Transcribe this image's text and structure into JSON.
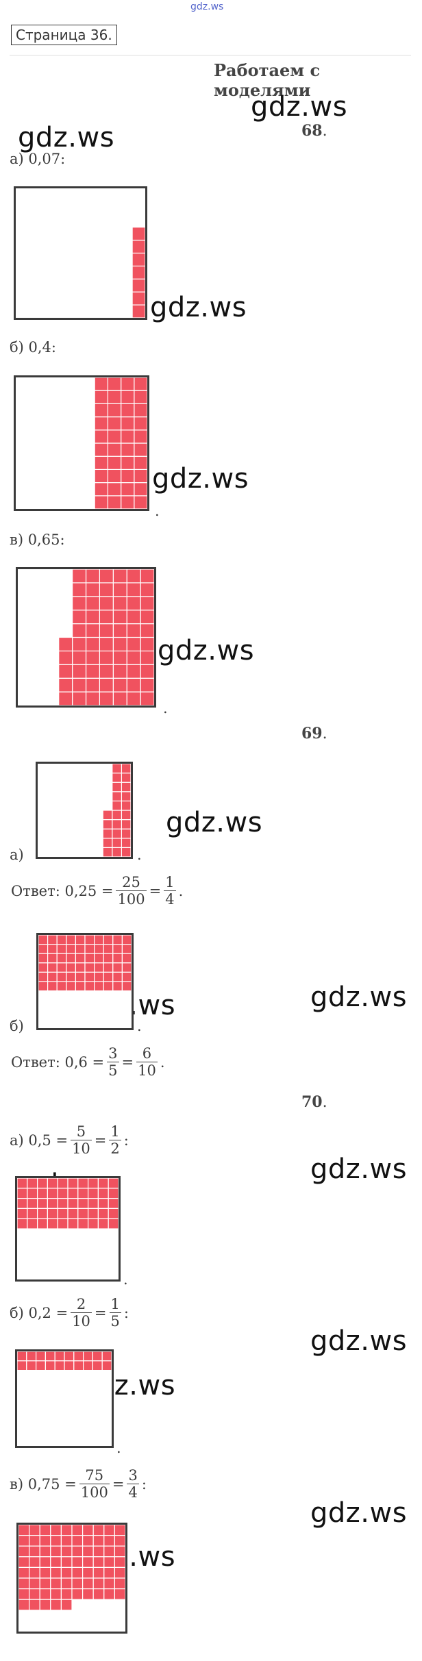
{
  "site_top": "gdz.ws",
  "page_label": "Страница 36.",
  "section_title": "Работаем с моделями",
  "watermark": "gdz.ws",
  "ex68": {
    "number": "68",
    "a_label": "а) 0,07:",
    "b_label": "б) 0,4:",
    "c_label": "в) 0,65:",
    "a_fraction": 0.07,
    "b_fraction": 0.4,
    "c_fraction": 0.65
  },
  "ex69": {
    "number": "69",
    "a_label": "а)",
    "a_answer_prefix": "Ответ: 0,25 =",
    "a_frac1_num": "25",
    "a_frac1_den": "100",
    "a_frac2_num": "1",
    "a_frac2_den": "4",
    "b_label": "б)",
    "b_answer_prefix": "Ответ: 0,6 =",
    "b_frac1_num": "3",
    "b_frac1_den": "5",
    "b_frac2_num": "6",
    "b_frac2_den": "10",
    "a_fraction": 0.25,
    "b_fraction": 0.6
  },
  "ex70": {
    "number": "70",
    "a_prefix": "а) 0,5 =",
    "a_frac1_num": "5",
    "a_frac1_den": "10",
    "a_frac2_num": "1",
    "a_frac2_den": "2",
    "b_prefix": "б) 0,2 =",
    "b_frac1_num": "2",
    "b_frac1_den": "10",
    "b_frac2_num": "1",
    "b_frac2_den": "5",
    "c_prefix": "в) 0,75 =",
    "c_frac1_num": "75",
    "c_frac1_den": "100",
    "c_frac2_num": "3",
    "c_frac2_den": "4",
    "a_fraction": 0.5,
    "b_fraction": 0.2,
    "c_fraction": 0.75
  },
  "punct_period": ".",
  "punct_colon": ":",
  "colors": {
    "fill": "#f0525f",
    "line": "#ffffff",
    "border": "#3a3a3a"
  }
}
